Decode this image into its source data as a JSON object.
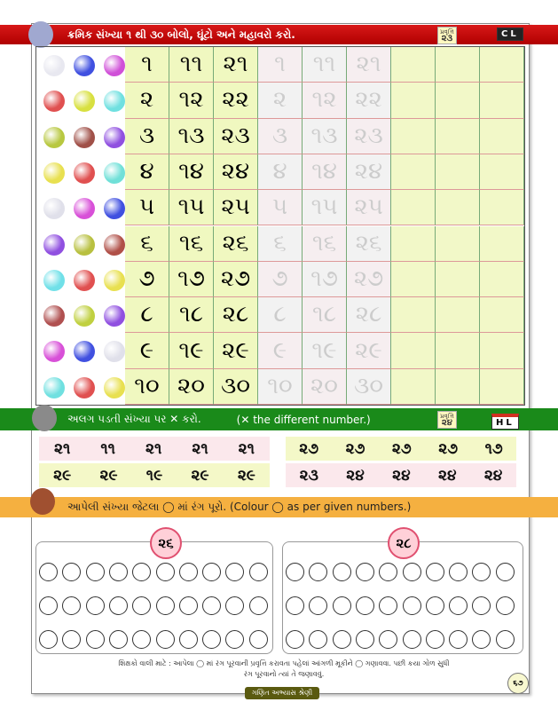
{
  "header": {
    "instruction": "ક્રમિક સંખ્યા ૧ થી ૩૦ બોલો, ઘૂંટો અને મહાવરો કરો.",
    "activity_label": "પ્રવૃત્તિ",
    "activity_no": "૨૩",
    "level": "CL",
    "color": "#c40c0c"
  },
  "grid": {
    "rows": [
      [
        "૧",
        "૧૧",
        "૨૧"
      ],
      [
        "૨",
        "૧૨",
        "૨૨"
      ],
      [
        "૩",
        "૧૩",
        "૨૩"
      ],
      [
        "૪",
        "૧૪",
        "૨૪"
      ],
      [
        "૫",
        "૧૫",
        "૨૫"
      ],
      [
        "૬",
        "૧૬",
        "૨૬"
      ],
      [
        "૭",
        "૧૭",
        "૨૭"
      ],
      [
        "૮",
        "૧૮",
        "૨૮"
      ],
      [
        "૯",
        "૧૯",
        "૨૯"
      ],
      [
        "૧૦",
        "૨૦",
        "૩૦"
      ]
    ],
    "bead_colors": [
      [
        "#e8e8f0",
        "#4050e0",
        "#d050d8"
      ],
      [
        "#e05050",
        "#d8e040",
        "#70e0e0"
      ],
      [
        "#b8c840",
        "#a05048",
        "#9050e0"
      ],
      [
        "#e8e050",
        "#e05050",
        "#70e0d8"
      ],
      [
        "#e0e0ea",
        "#d850d8",
        "#4050e0"
      ],
      [
        "#9050e0",
        "#b8c040",
        "#b05048"
      ],
      [
        "#70e0e8",
        "#e05050",
        "#e8e050"
      ],
      [
        "#b05050",
        "#c0d040",
        "#9050e0"
      ],
      [
        "#d850d8",
        "#4050e0",
        "#e0e0ea"
      ],
      [
        "#70e0e0",
        "#e05050",
        "#e8e050"
      ]
    ]
  },
  "odd_one_out": {
    "instruction": "અલગ પડતી સંખ્યા પર ✕ કરો.",
    "english": "(✕ the different number.)",
    "activity_label": "પ્રવૃત્તિ",
    "activity_no": "૨૪",
    "level": "HL",
    "left": [
      [
        "૨૧",
        "૧૧",
        "૨૧",
        "૨૧",
        "૨૧"
      ],
      [
        "૨૯",
        "૨૯",
        "૧૯",
        "૨૯",
        "૨૯"
      ]
    ],
    "right": [
      [
        "૨૭",
        "૨૭",
        "૨૭",
        "૨૭",
        "૧૭"
      ],
      [
        "૨૩",
        "૨૪",
        "૨૪",
        "૨૪",
        "૨૪"
      ]
    ]
  },
  "colour": {
    "instruction": "આપેલી સંખ્યા જેટલા ◯ માં રંગ પૂરો. (Colour ◯ as per given numbers.)",
    "left_number": "૨૬",
    "right_number": "૨૮"
  },
  "footer": {
    "note_line1": "શિક્ષકો વાલી માટે : આપેલા ◯ માં રંગ પૂરવાની પ્રવૃત્તિ કરાવતા પહેલાં આંગળી મૂકીને ◯ ગણાવવા. પછી કયા ગોળ સુધી",
    "note_line2": "રંગ પૂરવાનો ત્યાં તે જણાવવું.",
    "page_number": "૬૭",
    "series_tag": "ગણિત અભ્યાસ શ્રેણી"
  }
}
